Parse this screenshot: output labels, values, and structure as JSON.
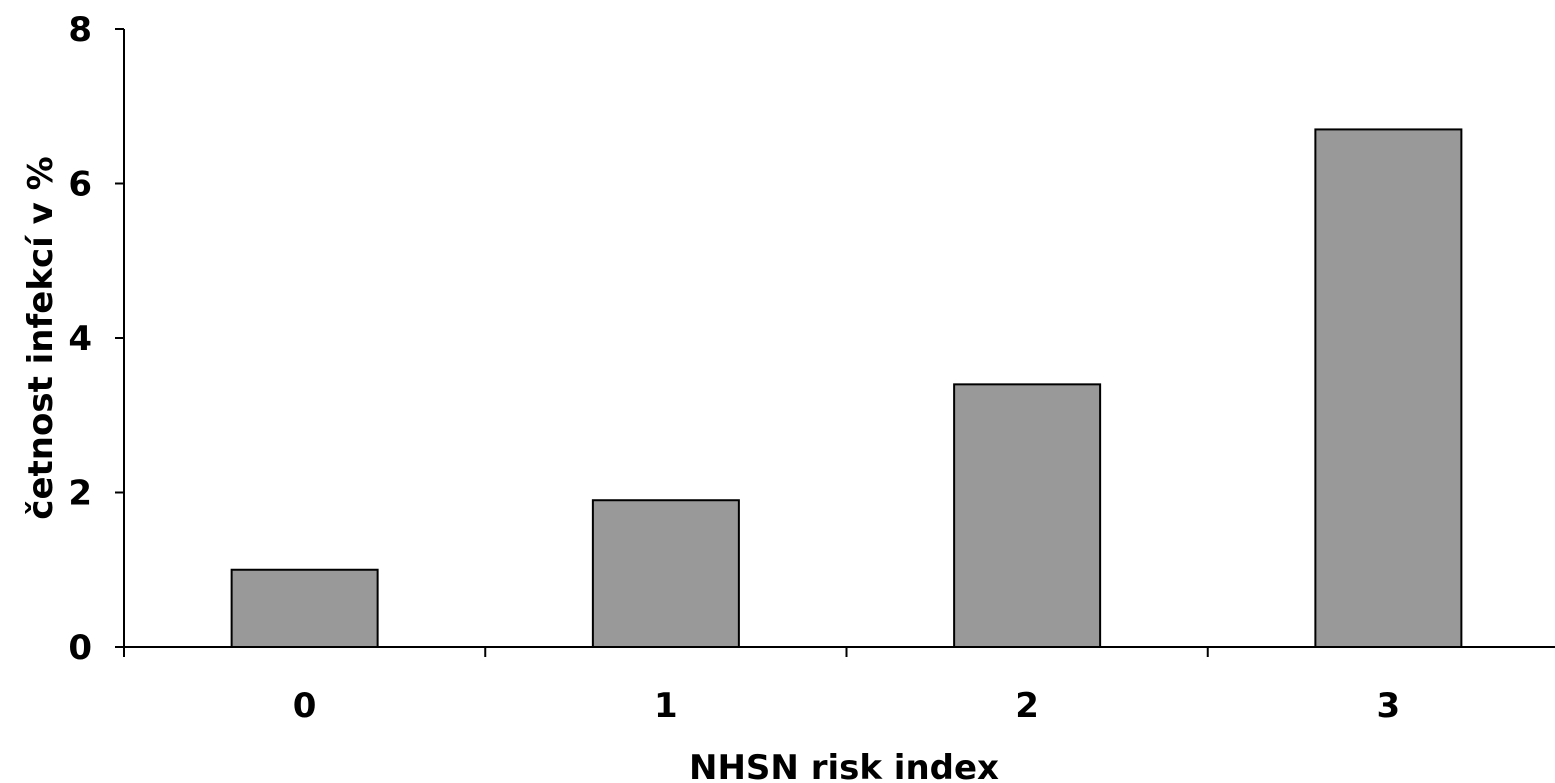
{
  "chart_data": {
    "type": "bar",
    "categories": [
      "0",
      "1",
      "2",
      "3"
    ],
    "values": [
      1.0,
      1.9,
      3.4,
      6.7
    ],
    "xlabel": "NHSN risk index",
    "ylabel": "četnost infekcí v %",
    "ylim": [
      0,
      8
    ],
    "yticks": [
      "0",
      "2",
      "4",
      "6",
      "8"
    ],
    "grid": false,
    "legend": "none",
    "bar_color": "#999999"
  }
}
